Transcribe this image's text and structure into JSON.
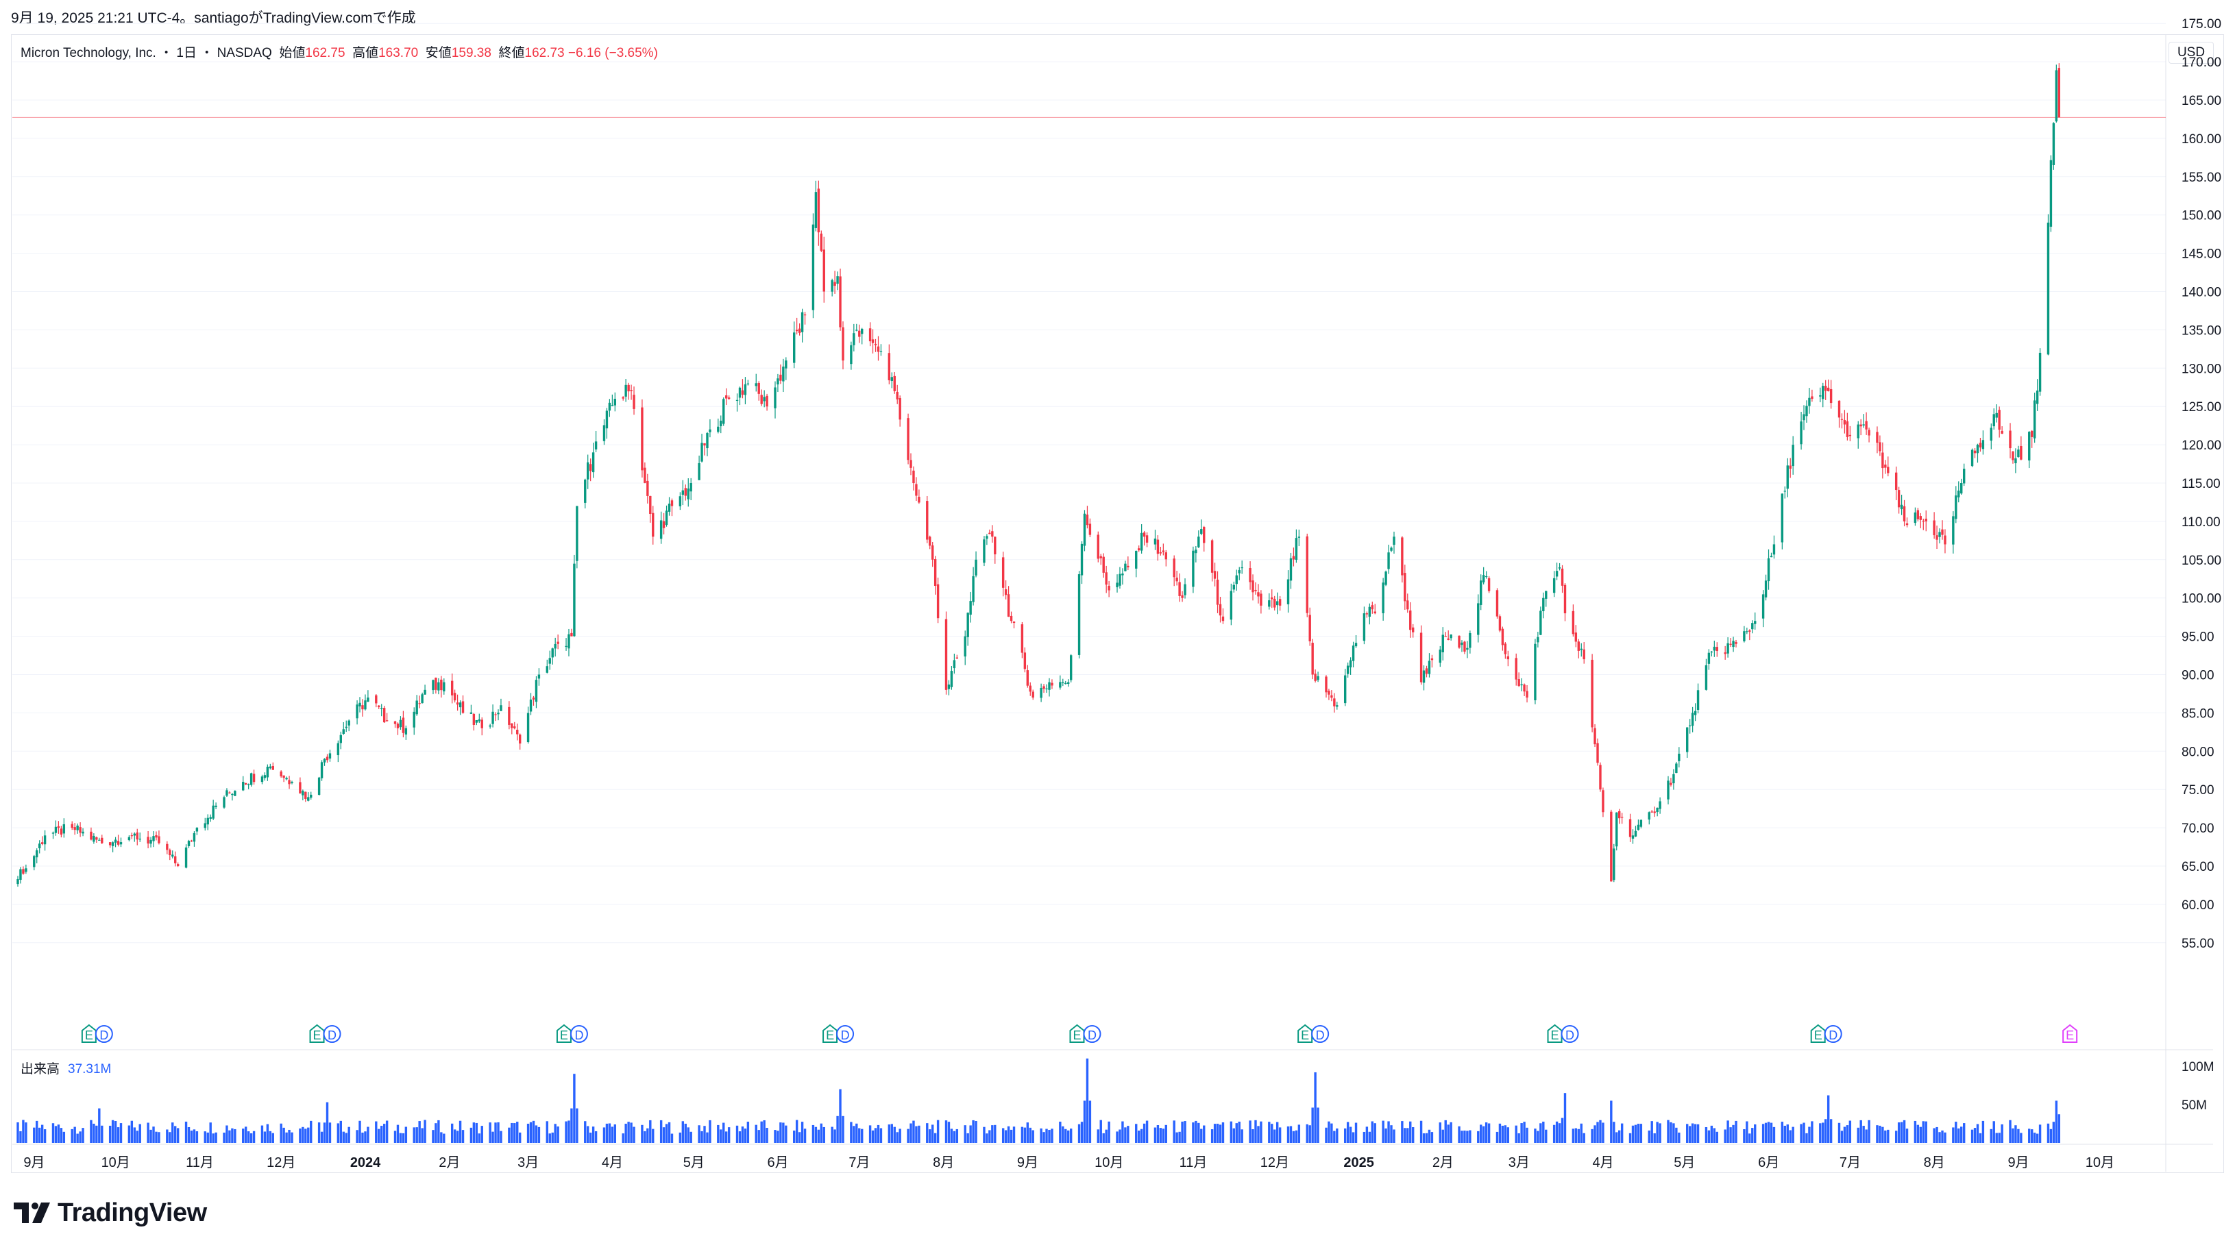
{
  "timestamp": "9月 19, 2025 21:21 UTC-4。santiagoがTradingView.comで作成",
  "header": {
    "symbol": "Micron Technology, Inc.",
    "separator1": "・",
    "interval": "1日",
    "separator2": "・",
    "exchange": "NASDAQ",
    "open_label": "始値",
    "open": "162.75",
    "high_label": "高値",
    "high": "163.70",
    "low_label": "安値",
    "low": "159.38",
    "close_label": "終値",
    "close": "162.73",
    "change": "−6.16 (−3.65%)"
  },
  "currency_button": "USD",
  "volume_label": {
    "name": "出来高",
    "value": "37.31M"
  },
  "brand": "TradingView",
  "colors": {
    "up": "#089981",
    "down": "#f23645",
    "volume": "#2962ff",
    "earnings": "#089981",
    "dividend": "#2962ff",
    "upcoming_earnings": "#e040fb",
    "price_line": "#f23645",
    "grid": "#f0f3fa"
  },
  "chart_data": {
    "type": "candlestick",
    "title": "Micron Technology, Inc. 1日 NASDAQ",
    "price_axis": {
      "ticks": [
        "55.00",
        "60.00",
        "65.00",
        "70.00",
        "75.00",
        "80.00",
        "85.00",
        "90.00",
        "95.00",
        "100.00",
        "105.00",
        "110.00",
        "115.00",
        "120.00",
        "125.00",
        "130.00",
        "135.00",
        "140.00",
        "145.00",
        "150.00",
        "155.00",
        "160.00",
        "165.00",
        "170.00",
        "175.00"
      ],
      "range": [
        52,
        180
      ]
    },
    "volume_axis": {
      "ticks": [
        "50M",
        "100M"
      ]
    },
    "time_axis": {
      "labels": [
        "9月",
        "10月",
        "11月",
        "12月",
        "2024",
        "2月",
        "3月",
        "4月",
        "5月",
        "6月",
        "7月",
        "8月",
        "9月",
        "10月",
        "11月",
        "12月",
        "2025",
        "2月",
        "3月",
        "4月",
        "5月",
        "6月",
        "7月",
        "8月",
        "9月",
        "10月"
      ]
    },
    "last_close": 162.73,
    "price_path": [
      [
        "2023-08-31",
        64
      ],
      [
        "2023-09-08",
        69
      ],
      [
        "2023-09-18",
        70
      ],
      [
        "2023-09-29",
        68
      ],
      [
        "2023-10-10",
        69
      ],
      [
        "2023-10-20",
        68
      ],
      [
        "2023-10-27",
        65
      ],
      [
        "2023-11-03",
        70
      ],
      [
        "2023-11-13",
        74
      ],
      [
        "2023-11-20",
        76
      ],
      [
        "2023-11-30",
        78
      ],
      [
        "2023-12-08",
        76
      ],
      [
        "2023-12-14",
        74
      ],
      [
        "2023-12-20",
        79
      ],
      [
        "2023-12-29",
        84
      ],
      [
        "2024-01-05",
        87
      ],
      [
        "2024-01-12",
        84
      ],
      [
        "2024-01-19",
        83
      ],
      [
        "2024-01-26",
        88
      ],
      [
        "2024-02-02",
        89
      ],
      [
        "2024-02-09",
        85
      ],
      [
        "2024-02-16",
        83
      ],
      [
        "2024-02-23",
        86
      ],
      [
        "2024-03-01",
        81
      ],
      [
        "2024-03-08",
        90
      ],
      [
        "2024-03-15",
        94
      ],
      [
        "2024-03-20",
        95
      ],
      [
        "2024-03-22",
        112
      ],
      [
        "2024-03-28",
        119
      ],
      [
        "2024-04-05",
        126
      ],
      [
        "2024-04-11",
        127
      ],
      [
        "2024-04-19",
        108
      ],
      [
        "2024-04-26",
        112
      ],
      [
        "2024-05-03",
        115
      ],
      [
        "2024-05-10",
        122
      ],
      [
        "2024-05-17",
        126
      ],
      [
        "2024-05-24",
        128
      ],
      [
        "2024-05-31",
        125
      ],
      [
        "2024-06-07",
        131
      ],
      [
        "2024-06-14",
        137
      ],
      [
        "2024-06-18",
        153
      ],
      [
        "2024-06-21",
        140
      ],
      [
        "2024-06-26",
        142
      ],
      [
        "2024-06-28",
        131
      ],
      [
        "2024-07-03",
        135
      ],
      [
        "2024-07-10",
        133
      ],
      [
        "2024-07-17",
        127
      ],
      [
        "2024-07-24",
        115
      ],
      [
        "2024-07-31",
        105
      ],
      [
        "2024-08-05",
        88
      ],
      [
        "2024-08-12",
        95
      ],
      [
        "2024-08-16",
        105
      ],
      [
        "2024-08-22",
        108
      ],
      [
        "2024-08-29",
        97
      ],
      [
        "2024-09-06",
        87
      ],
      [
        "2024-09-12",
        89
      ],
      [
        "2024-09-19",
        89
      ],
      [
        "2024-09-25",
        111
      ],
      [
        "2024-10-04",
        101
      ],
      [
        "2024-10-11",
        104
      ],
      [
        "2024-10-17",
        108
      ],
      [
        "2024-10-24",
        106
      ],
      [
        "2024-10-31",
        100
      ],
      [
        "2024-11-07",
        109
      ],
      [
        "2024-11-15",
        97
      ],
      [
        "2024-11-22",
        104
      ],
      [
        "2024-11-29",
        99
      ],
      [
        "2024-12-06",
        99
      ],
      [
        "2024-12-13",
        108
      ],
      [
        "2024-12-18",
        90
      ],
      [
        "2024-12-27",
        86
      ],
      [
        "2025-01-06",
        98
      ],
      [
        "2025-01-10",
        98
      ],
      [
        "2025-01-17",
        108
      ],
      [
        "2025-01-27",
        89
      ],
      [
        "2025-02-05",
        95
      ],
      [
        "2025-02-12",
        93
      ],
      [
        "2025-02-19",
        103
      ],
      [
        "2025-02-28",
        92
      ],
      [
        "2025-03-07",
        87
      ],
      [
        "2025-03-13",
        100
      ],
      [
        "2025-03-19",
        104
      ],
      [
        "2025-03-21",
        98
      ],
      [
        "2025-03-28",
        92
      ],
      [
        "2025-04-03",
        75
      ],
      [
        "2025-04-07",
        63
      ],
      [
        "2025-04-09",
        72
      ],
      [
        "2025-04-15",
        69
      ],
      [
        "2025-04-22",
        72
      ],
      [
        "2025-04-30",
        77
      ],
      [
        "2025-05-07",
        85
      ],
      [
        "2025-05-14",
        93
      ],
      [
        "2025-05-23",
        94
      ],
      [
        "2025-05-30",
        97
      ],
      [
        "2025-06-06",
        107
      ],
      [
        "2025-06-13",
        120
      ],
      [
        "2025-06-20",
        126
      ],
      [
        "2025-06-26",
        127
      ],
      [
        "2025-07-03",
        121
      ],
      [
        "2025-07-10",
        122
      ],
      [
        "2025-07-17",
        117
      ],
      [
        "2025-07-24",
        110
      ],
      [
        "2025-08-01",
        110
      ],
      [
        "2025-08-08",
        107
      ],
      [
        "2025-08-14",
        115
      ],
      [
        "2025-08-20",
        120
      ],
      [
        "2025-08-26",
        124
      ],
      [
        "2025-09-02",
        118
      ],
      [
        "2025-09-09",
        121
      ],
      [
        "2025-09-12",
        132
      ],
      [
        "2025-09-15",
        149
      ],
      [
        "2025-09-17",
        162
      ],
      [
        "2025-09-18",
        168.89
      ],
      [
        "2025-09-19",
        162.73
      ]
    ],
    "events": [
      {
        "date": "2023-09-27",
        "types": [
          "E",
          "D"
        ]
      },
      {
        "date": "2023-12-20",
        "types": [
          "E",
          "D"
        ]
      },
      {
        "date": "2024-03-20",
        "types": [
          "E",
          "D"
        ]
      },
      {
        "date": "2024-06-26",
        "types": [
          "E",
          "D"
        ]
      },
      {
        "date": "2024-09-25",
        "types": [
          "E",
          "D"
        ]
      },
      {
        "date": "2024-12-18",
        "types": [
          "E",
          "D"
        ]
      },
      {
        "date": "2025-03-20",
        "types": [
          "E",
          "D"
        ]
      },
      {
        "date": "2025-06-25",
        "types": [
          "E",
          "D"
        ]
      },
      {
        "date": "2025-09-23",
        "types": [
          "E"
        ],
        "upcoming": true
      }
    ],
    "volume": {
      "typical": 20,
      "last": 37.31,
      "spikes": [
        [
          "2023-09-28",
          45
        ],
        [
          "2023-12-21",
          53
        ],
        [
          "2024-03-21",
          90
        ],
        [
          "2024-06-27",
          70
        ],
        [
          "2024-09-26",
          110
        ],
        [
          "2024-12-19",
          92
        ],
        [
          "2025-03-21",
          65
        ],
        [
          "2025-04-07",
          55
        ],
        [
          "2025-06-26",
          62
        ],
        [
          "2025-09-18",
          55
        ]
      ]
    },
    "grid": true
  }
}
